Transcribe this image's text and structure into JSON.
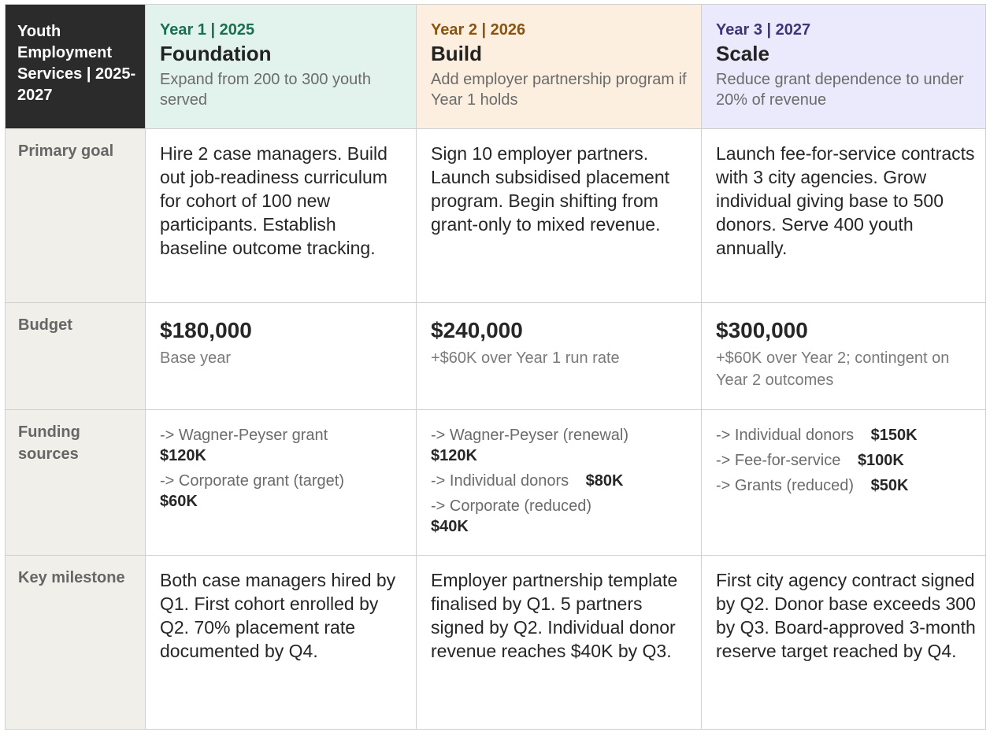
{
  "corner_title": "Youth Employment Services | 2025-2027",
  "years": [
    {
      "label": "Year 1 | 2025",
      "title": "Foundation",
      "subtitle": "Expand from 200 to 300 youth served"
    },
    {
      "label": "Year 2 | 2026",
      "title": "Build",
      "subtitle": "Add employer partnership program if Year 1 holds"
    },
    {
      "label": "Year 3 | 2027",
      "title": "Scale",
      "subtitle": "Reduce grant dependence to under 20% of revenue"
    }
  ],
  "row_labels": {
    "primary_goal": "Primary goal",
    "budget": "Budget",
    "funding_sources": "Funding sources",
    "key_milestone": "Key milestone"
  },
  "primary_goals": [
    "Hire 2 case managers. Build out job-readiness curriculum for cohort of 100 new participants. Establish baseline outcome tracking.",
    "Sign 10 employer partners. Launch subsidised placement program. Begin shifting from grant-only to mixed revenue.",
    "Launch fee-for-service contracts with 3 city agencies. Grow individual giving base to 500 donors. Serve 400 youth annually."
  ],
  "budgets": [
    {
      "amount": "$180,000",
      "note": "Base year"
    },
    {
      "amount": "$240,000",
      "note": "+$60K over Year 1 run rate"
    },
    {
      "amount": "$300,000",
      "note": "+$60K over Year 2; contingent on Year 2 outcomes"
    }
  ],
  "funding": [
    [
      {
        "label": "->  Wagner-Peyser grant",
        "amount": "$120K"
      },
      {
        "label": "->  Corporate grant (target)",
        "amount": "$60K"
      }
    ],
    [
      {
        "label": "->  Wagner-Peyser (renewal)",
        "amount": "$120K"
      },
      {
        "label": "->  Individual donors",
        "amount": "$80K"
      },
      {
        "label": "->  Corporate (reduced)",
        "amount": "$40K"
      }
    ],
    [
      {
        "label": "->  Individual donors",
        "amount": "$150K"
      },
      {
        "label": "->  Fee-for-service",
        "amount": "$100K"
      },
      {
        "label": "->  Grants (reduced)",
        "amount": "$50K"
      }
    ]
  ],
  "milestones": [
    "Both case managers hired by Q1. First cohort enrolled by Q2. 70% placement rate documented by Q4.",
    "Employer partnership template finalised by Q1. 5 partners signed by Q2. Individual donor revenue reaches $40K by Q3.",
    "First city agency contract signed by Q2. Donor base exceeds 300 by Q3. Board-approved 3-month reserve target reached by Q4."
  ]
}
